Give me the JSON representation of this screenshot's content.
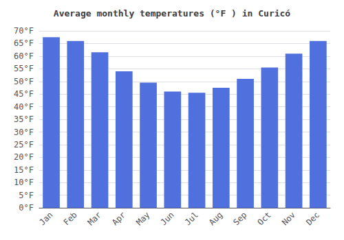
{
  "chart_data": {
    "type": "bar",
    "title": "Average monthly temperatures (°F ) in Curicó",
    "categories": [
      "Jan",
      "Feb",
      "Mar",
      "Apr",
      "May",
      "Jun",
      "Jul",
      "Aug",
      "Sep",
      "Oct",
      "Nov",
      "Dec"
    ],
    "values": [
      67.5,
      66.0,
      61.5,
      54.0,
      49.5,
      46.0,
      45.5,
      47.5,
      51.0,
      55.5,
      61.0,
      66.0
    ],
    "ylim": [
      0,
      70
    ],
    "yticks": [
      {
        "value": 0,
        "label": "0°F"
      },
      {
        "value": 5,
        "label": "5°F"
      },
      {
        "value": 10,
        "label": "10°F"
      },
      {
        "value": 15,
        "label": "15°F"
      },
      {
        "value": 20,
        "label": "20°F"
      },
      {
        "value": 25,
        "label": "25°F"
      },
      {
        "value": 30,
        "label": "30°F"
      },
      {
        "value": 35,
        "label": "35°F"
      },
      {
        "value": 40,
        "label": "40°F"
      },
      {
        "value": 45,
        "label": "45°F"
      },
      {
        "value": 50,
        "label": "50°F"
      },
      {
        "value": 55,
        "label": "55°F"
      },
      {
        "value": 60,
        "label": "60°F"
      },
      {
        "value": 65,
        "label": "65°F"
      },
      {
        "value": 70,
        "label": "70°F"
      }
    ],
    "grid": true
  }
}
